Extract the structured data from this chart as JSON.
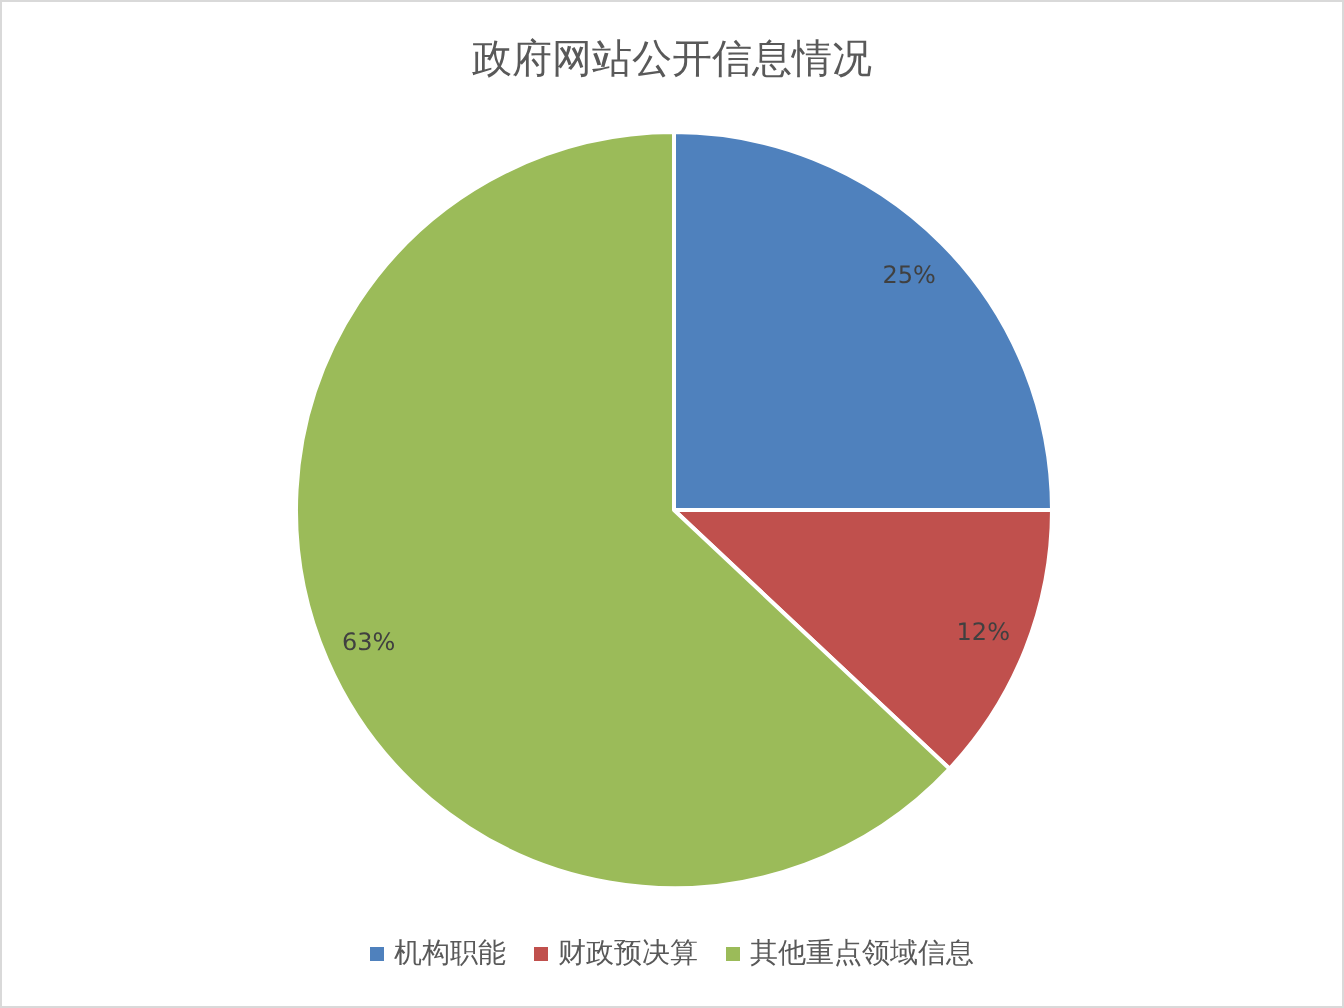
{
  "chart_data": {
    "type": "pie",
    "title": "政府网站公开信息情况",
    "categories": [
      "机构职能",
      "财政预决算",
      "其他重点领域信息"
    ],
    "values": [
      25,
      12,
      63
    ],
    "colors": [
      "#4f81bd",
      "#c0504d",
      "#9bbb59"
    ],
    "value_labels": [
      "25%",
      "12%",
      "63%"
    ],
    "legend": "bottom"
  }
}
